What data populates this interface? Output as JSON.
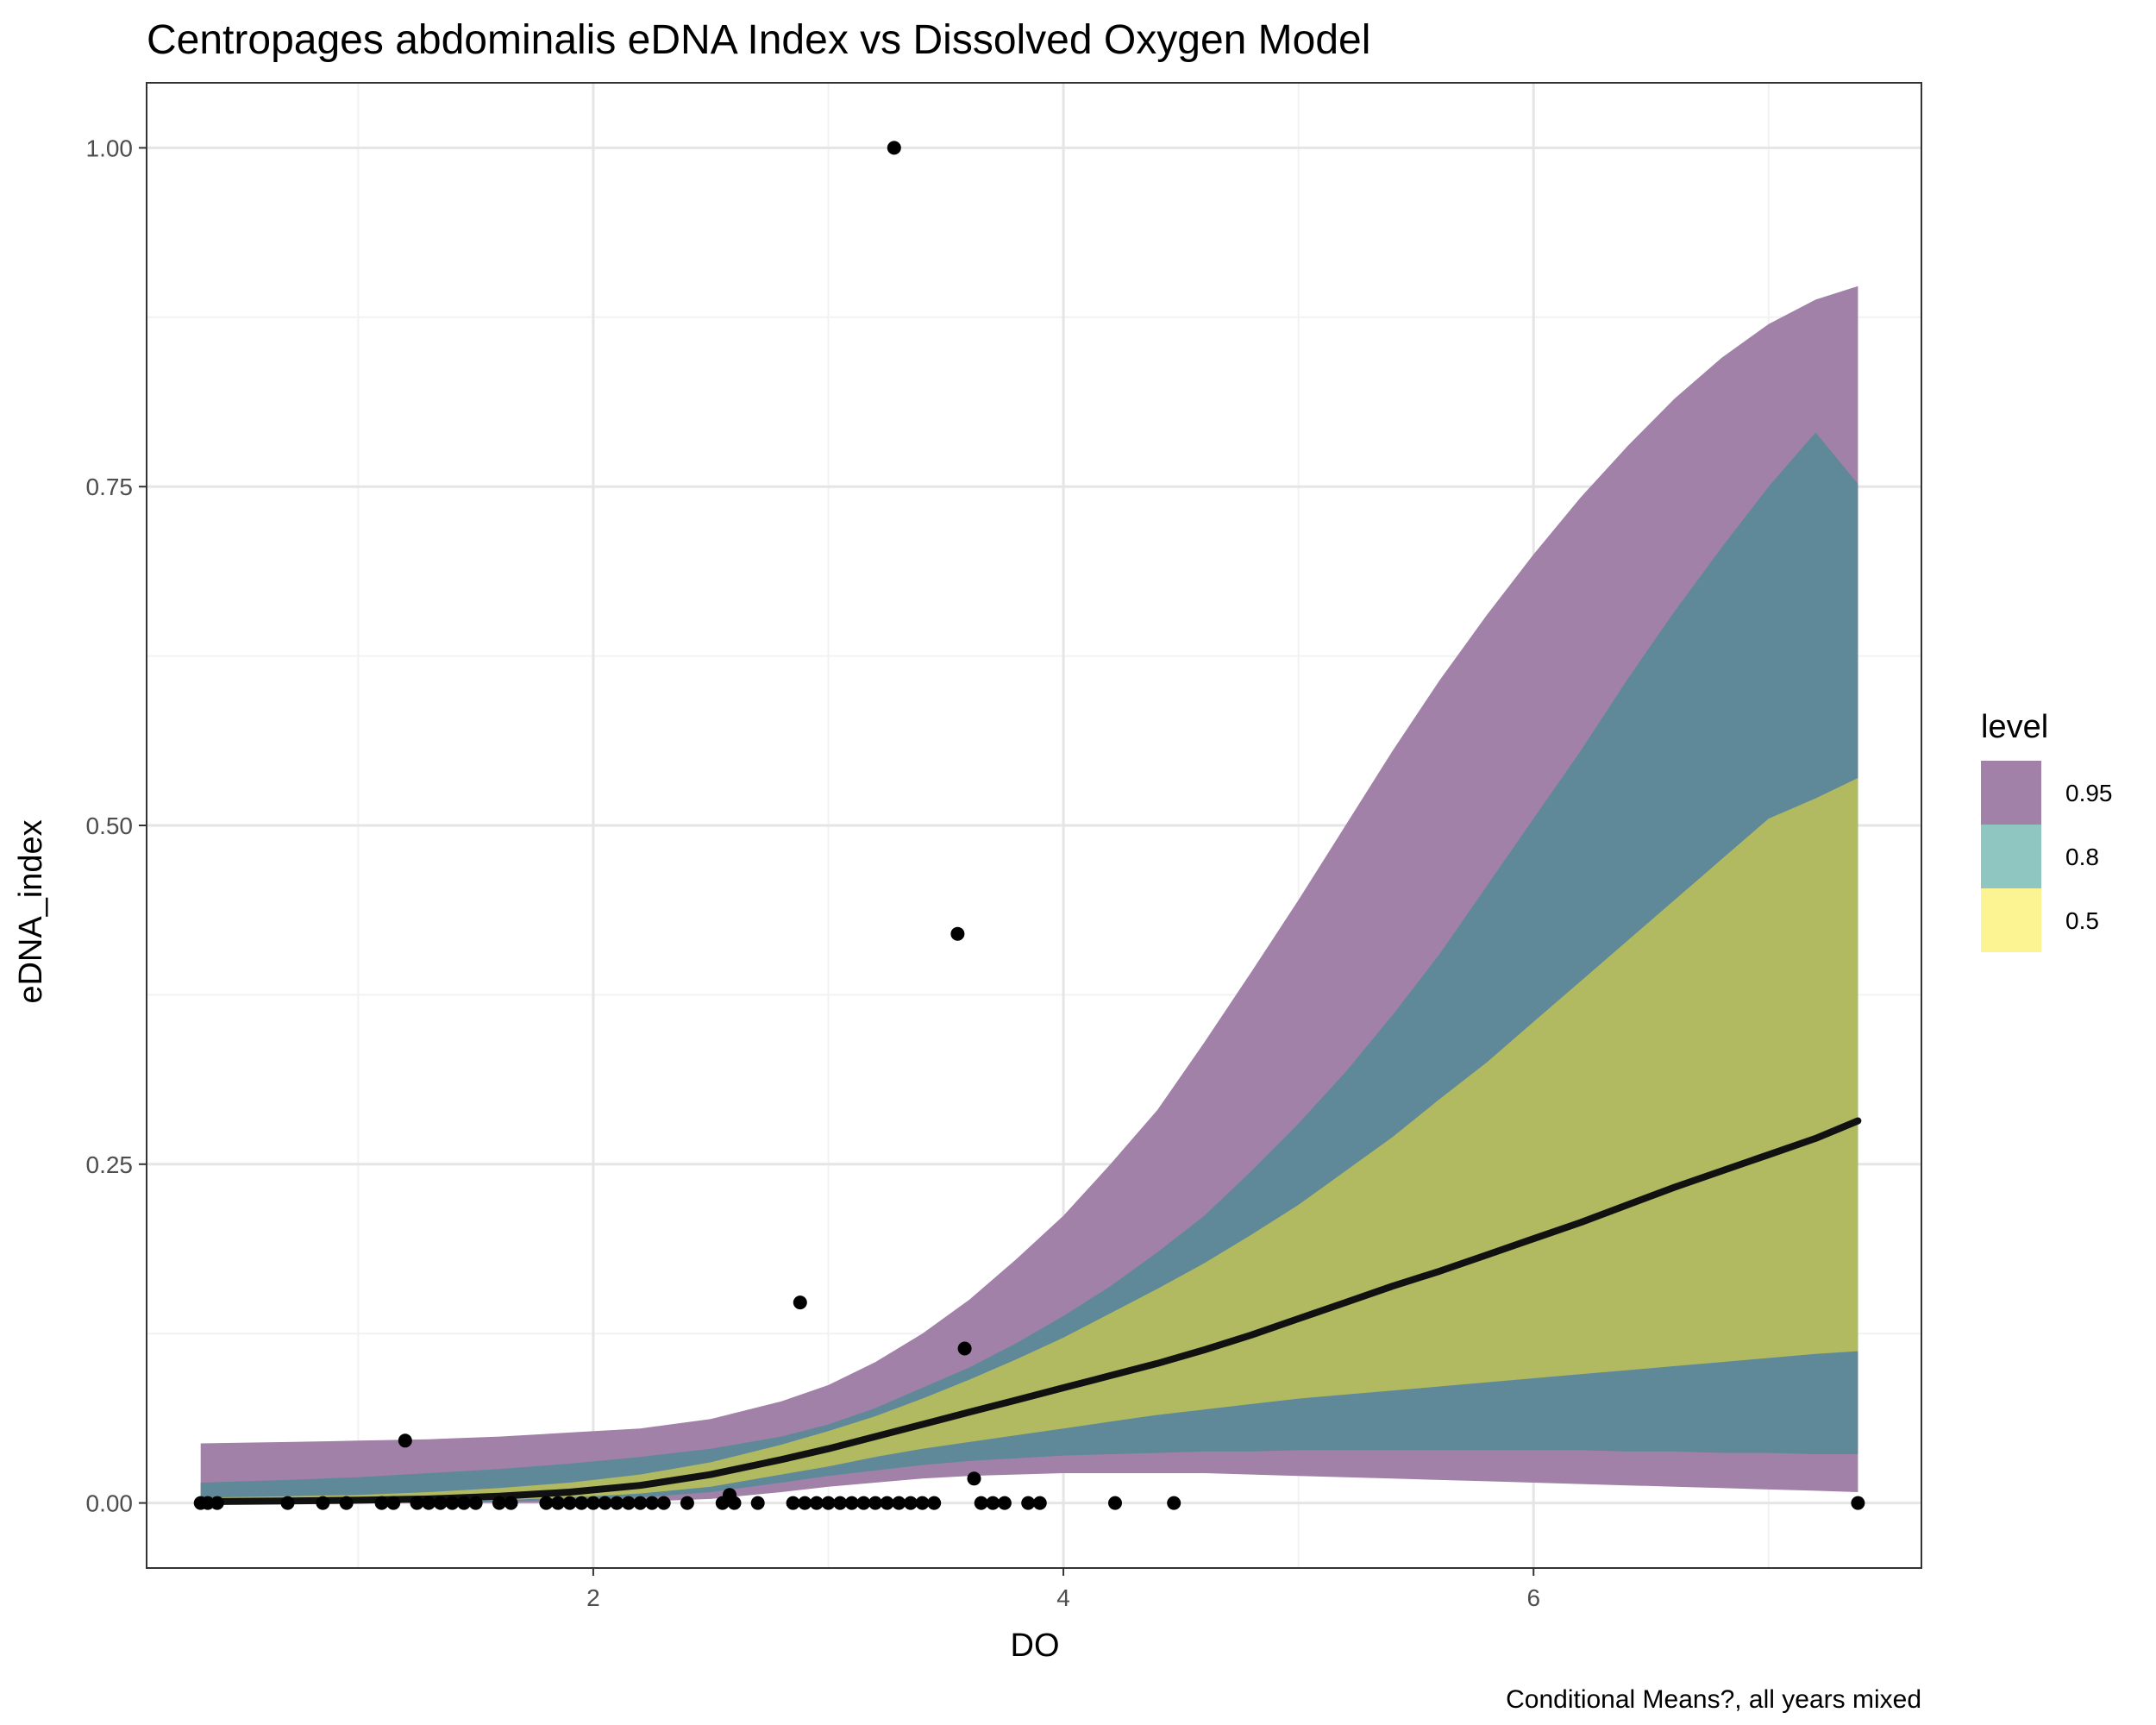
{
  "chart_data": {
    "type": "area",
    "title": "Centropages abdominalis eDNA Index vs Dissolved Oxygen Model",
    "xlabel": "DO",
    "ylabel": "eDNA_index",
    "caption": "Conditional Means?, all years mixed",
    "xlim": [
      0.1,
      7.65
    ],
    "ylim": [
      -0.048,
      1.048
    ],
    "x_ticks": [
      2,
      4,
      6
    ],
    "x_tick_labels": [
      "2",
      "4",
      "6"
    ],
    "y_ticks": [
      0,
      0.25,
      0.5,
      0.75,
      1.0
    ],
    "y_tick_labels": [
      "0.00",
      "0.25",
      "0.50",
      "0.75",
      "1.00"
    ],
    "grid": true,
    "legend": {
      "title": "level",
      "position": "right",
      "entries": [
        {
          "label": "0.95",
          "color": "#a181a8"
        },
        {
          "label": "0.8",
          "color": "#8fc6c2"
        },
        {
          "label": "0.5",
          "color": "#fcf393"
        }
      ]
    },
    "colors": {
      "band_95": "#a181a8",
      "band_80": "#5f8898",
      "band_50": "#b1ba60",
      "line": "#111111",
      "points": "#000000",
      "grid_major": "#e5e5e5",
      "grid_minor": "#f2f2f2",
      "panel_border": "#333333"
    },
    "x": [
      0.33,
      0.7,
      1.0,
      1.3,
      1.6,
      1.9,
      2.2,
      2.5,
      2.8,
      3.0,
      3.2,
      3.4,
      3.6,
      3.8,
      4.0,
      4.2,
      4.4,
      4.6,
      4.8,
      5.0,
      5.2,
      5.4,
      5.6,
      5.8,
      6.0,
      6.2,
      6.4,
      6.6,
      6.8,
      7.0,
      7.2,
      7.38
    ],
    "series": [
      {
        "name": "mean",
        "values": [
          0.001,
          0.0015,
          0.002,
          0.003,
          0.005,
          0.008,
          0.013,
          0.021,
          0.032,
          0.04,
          0.049,
          0.058,
          0.067,
          0.076,
          0.085,
          0.094,
          0.103,
          0.113,
          0.124,
          0.136,
          0.148,
          0.16,
          0.171,
          0.183,
          0.195,
          0.207,
          0.22,
          0.233,
          0.245,
          0.257,
          0.269,
          0.282
        ]
      },
      {
        "name": "0.95 lower",
        "values": [
          0.0,
          0.0,
          0.0,
          0.0,
          0.0,
          0.0,
          0.001,
          0.003,
          0.008,
          0.012,
          0.015,
          0.018,
          0.02,
          0.021,
          0.022,
          0.022,
          0.022,
          0.022,
          0.021,
          0.02,
          0.019,
          0.018,
          0.017,
          0.016,
          0.015,
          0.014,
          0.013,
          0.012,
          0.011,
          0.01,
          0.009,
          0.008
        ]
      },
      {
        "name": "0.95 upper",
        "values": [
          0.044,
          0.045,
          0.046,
          0.047,
          0.049,
          0.052,
          0.055,
          0.062,
          0.075,
          0.087,
          0.104,
          0.125,
          0.15,
          0.18,
          0.212,
          0.25,
          0.29,
          0.34,
          0.392,
          0.445,
          0.5,
          0.555,
          0.607,
          0.655,
          0.7,
          0.742,
          0.78,
          0.815,
          0.845,
          0.87,
          0.888,
          0.898
        ]
      },
      {
        "name": "0.8 lower",
        "values": [
          0.0,
          0.0,
          0.0,
          0.0005,
          0.001,
          0.002,
          0.004,
          0.008,
          0.015,
          0.02,
          0.024,
          0.028,
          0.031,
          0.033,
          0.035,
          0.036,
          0.037,
          0.038,
          0.038,
          0.039,
          0.039,
          0.039,
          0.039,
          0.039,
          0.039,
          0.039,
          0.038,
          0.038,
          0.037,
          0.037,
          0.036,
          0.036
        ]
      },
      {
        "name": "0.8 upper",
        "values": [
          0.015,
          0.017,
          0.019,
          0.022,
          0.025,
          0.029,
          0.034,
          0.04,
          0.049,
          0.058,
          0.07,
          0.085,
          0.1,
          0.118,
          0.138,
          0.16,
          0.185,
          0.212,
          0.245,
          0.28,
          0.318,
          0.36,
          0.405,
          0.455,
          0.505,
          0.555,
          0.608,
          0.658,
          0.705,
          0.75,
          0.79,
          0.752
        ]
      },
      {
        "name": "0.5 lower",
        "values": [
          0.0,
          0.0,
          0.0005,
          0.001,
          0.002,
          0.004,
          0.007,
          0.012,
          0.021,
          0.027,
          0.034,
          0.04,
          0.045,
          0.05,
          0.055,
          0.06,
          0.065,
          0.069,
          0.073,
          0.077,
          0.08,
          0.083,
          0.086,
          0.089,
          0.092,
          0.095,
          0.098,
          0.101,
          0.104,
          0.107,
          0.11,
          0.112
        ]
      },
      {
        "name": "0.5 upper",
        "values": [
          0.004,
          0.005,
          0.006,
          0.008,
          0.011,
          0.015,
          0.021,
          0.03,
          0.043,
          0.053,
          0.064,
          0.077,
          0.091,
          0.106,
          0.122,
          0.14,
          0.158,
          0.177,
          0.198,
          0.22,
          0.245,
          0.27,
          0.298,
          0.325,
          0.355,
          0.385,
          0.415,
          0.445,
          0.475,
          0.505,
          0.52,
          0.535
        ]
      }
    ],
    "points": [
      {
        "x": 0.33,
        "y": 0
      },
      {
        "x": 0.36,
        "y": 0
      },
      {
        "x": 0.4,
        "y": 0
      },
      {
        "x": 0.7,
        "y": 0
      },
      {
        "x": 0.85,
        "y": 0
      },
      {
        "x": 0.95,
        "y": 0
      },
      {
        "x": 1.1,
        "y": 0
      },
      {
        "x": 1.15,
        "y": 0
      },
      {
        "x": 1.2,
        "y": 0.046
      },
      {
        "x": 1.25,
        "y": 0
      },
      {
        "x": 1.3,
        "y": 0
      },
      {
        "x": 1.35,
        "y": 0
      },
      {
        "x": 1.4,
        "y": 0
      },
      {
        "x": 1.45,
        "y": 0
      },
      {
        "x": 1.5,
        "y": 0
      },
      {
        "x": 1.6,
        "y": 0
      },
      {
        "x": 1.65,
        "y": 0
      },
      {
        "x": 1.8,
        "y": 0
      },
      {
        "x": 1.85,
        "y": 0
      },
      {
        "x": 1.9,
        "y": 0
      },
      {
        "x": 1.95,
        "y": 0
      },
      {
        "x": 2.0,
        "y": 0
      },
      {
        "x": 2.05,
        "y": 0
      },
      {
        "x": 2.1,
        "y": 0
      },
      {
        "x": 2.15,
        "y": 0
      },
      {
        "x": 2.2,
        "y": 0
      },
      {
        "x": 2.25,
        "y": 0
      },
      {
        "x": 2.3,
        "y": 0
      },
      {
        "x": 2.4,
        "y": 0
      },
      {
        "x": 2.55,
        "y": 0
      },
      {
        "x": 2.58,
        "y": 0.006
      },
      {
        "x": 2.6,
        "y": 0
      },
      {
        "x": 2.7,
        "y": 0
      },
      {
        "x": 2.85,
        "y": 0
      },
      {
        "x": 2.88,
        "y": 0.148
      },
      {
        "x": 2.9,
        "y": 0
      },
      {
        "x": 2.95,
        "y": 0
      },
      {
        "x": 3.0,
        "y": 0
      },
      {
        "x": 3.05,
        "y": 0
      },
      {
        "x": 3.1,
        "y": 0
      },
      {
        "x": 3.15,
        "y": 0
      },
      {
        "x": 3.2,
        "y": 0
      },
      {
        "x": 3.25,
        "y": 0
      },
      {
        "x": 3.28,
        "y": 1.0
      },
      {
        "x": 3.3,
        "y": 0
      },
      {
        "x": 3.35,
        "y": 0
      },
      {
        "x": 3.4,
        "y": 0
      },
      {
        "x": 3.45,
        "y": 0
      },
      {
        "x": 3.55,
        "y": 0.42
      },
      {
        "x": 3.58,
        "y": 0.114
      },
      {
        "x": 3.62,
        "y": 0.018
      },
      {
        "x": 3.65,
        "y": 0
      },
      {
        "x": 3.7,
        "y": 0
      },
      {
        "x": 3.75,
        "y": 0
      },
      {
        "x": 3.85,
        "y": 0
      },
      {
        "x": 3.9,
        "y": 0
      },
      {
        "x": 4.22,
        "y": 0
      },
      {
        "x": 4.47,
        "y": 0
      },
      {
        "x": 7.38,
        "y": 0
      }
    ]
  }
}
